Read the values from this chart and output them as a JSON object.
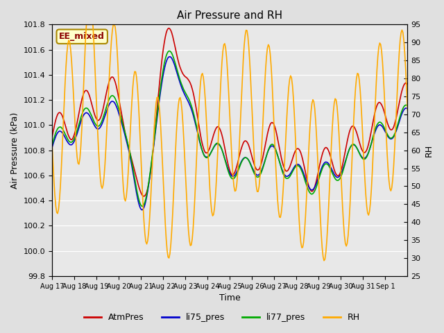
{
  "title": "Air Pressure and RH",
  "xlabel": "Time",
  "ylabel_left": "Air Pressure (kPa)",
  "ylabel_right": "RH",
  "annotation": "EE_mixed",
  "ylim_left": [
    99.8,
    101.8
  ],
  "ylim_right": [
    25,
    95
  ],
  "yticks_left": [
    99.8,
    100.0,
    100.2,
    100.4,
    100.6,
    100.8,
    101.0,
    101.2,
    101.4,
    101.6,
    101.8
  ],
  "yticks_right": [
    25,
    30,
    35,
    40,
    45,
    50,
    55,
    60,
    65,
    70,
    75,
    80,
    85,
    90,
    95
  ],
  "xtick_labels": [
    "Aug 17",
    "Aug 18",
    "Aug 19",
    "Aug 20",
    "Aug 21",
    "Aug 22",
    "Aug 23",
    "Aug 24",
    "Aug 25",
    "Aug 26",
    "Aug 27",
    "Aug 28",
    "Aug 29",
    "Aug 30",
    "Aug 31",
    "Sep 1"
  ],
  "colors": {
    "AtmPres": "#cc0000",
    "li75_pres": "#0000cc",
    "li77_pres": "#00aa00",
    "RH": "#ffaa00"
  },
  "bg_color": "#e0e0e0",
  "plot_bg_color": "#e8e8e8",
  "annotation_bg": "#ffffcc",
  "annotation_border": "#aa8800",
  "n_days": 16
}
